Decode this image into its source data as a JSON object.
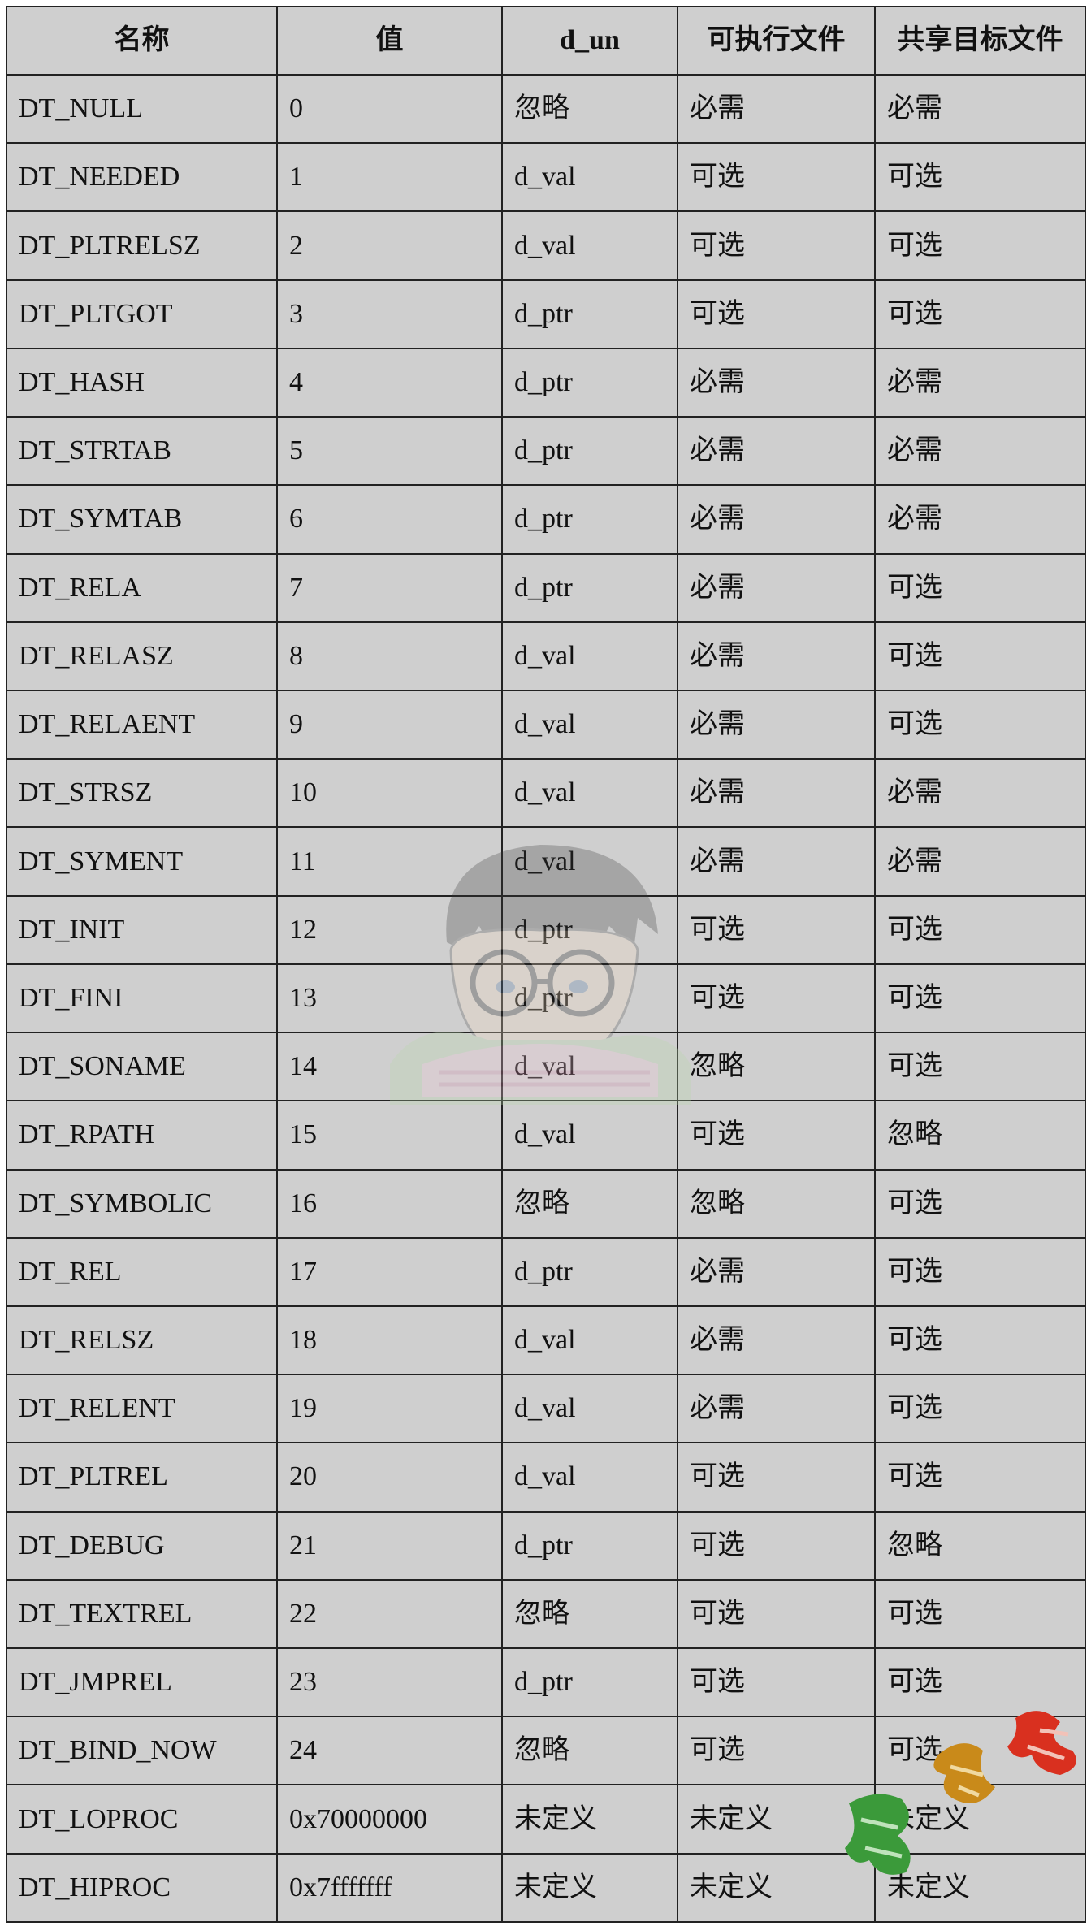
{
  "table": {
    "headers": [
      "名称",
      "值",
      "d_un",
      "可执行文件",
      "共享目标文件"
    ],
    "rows": [
      [
        "DT_NULL",
        "0",
        "忽略",
        "必需",
        "必需"
      ],
      [
        "DT_NEEDED",
        "1",
        "d_val",
        "可选",
        "可选"
      ],
      [
        "DT_PLTRELSZ",
        "2",
        "d_val",
        "可选",
        "可选"
      ],
      [
        "DT_PLTGOT",
        "3",
        "d_ptr",
        "可选",
        "可选"
      ],
      [
        "DT_HASH",
        "4",
        "d_ptr",
        "必需",
        "必需"
      ],
      [
        "DT_STRTAB",
        "5",
        "d_ptr",
        "必需",
        "必需"
      ],
      [
        "DT_SYMTAB",
        "6",
        "d_ptr",
        "必需",
        "必需"
      ],
      [
        "DT_RELA",
        "7",
        "d_ptr",
        "必需",
        "可选"
      ],
      [
        "DT_RELASZ",
        "8",
        "d_val",
        "必需",
        "可选"
      ],
      [
        "DT_RELAENT",
        "9",
        "d_val",
        "必需",
        "可选"
      ],
      [
        "DT_STRSZ",
        "10",
        "d_val",
        "必需",
        "必需"
      ],
      [
        "DT_SYMENT",
        "11",
        "d_val",
        "必需",
        "必需"
      ],
      [
        "DT_INIT",
        "12",
        "d_ptr",
        "可选",
        "可选"
      ],
      [
        "DT_FINI",
        "13",
        "d_ptr",
        "可选",
        "可选"
      ],
      [
        "DT_SONAME",
        "14",
        "d_val",
        "忽略",
        "可选"
      ],
      [
        "DT_RPATH",
        "15",
        "d_val",
        "可选",
        "忽略"
      ],
      [
        "DT_SYMBOLIC",
        "16",
        "忽略",
        "忽略",
        "可选"
      ],
      [
        "DT_REL",
        "17",
        "d_ptr",
        "必需",
        "可选"
      ],
      [
        "DT_RELSZ",
        "18",
        "d_val",
        "必需",
        "可选"
      ],
      [
        "DT_RELENT",
        "19",
        "d_val",
        "必需",
        "可选"
      ],
      [
        "DT_PLTREL",
        "20",
        "d_val",
        "可选",
        "可选"
      ],
      [
        "DT_DEBUG",
        "21",
        "d_ptr",
        "可选",
        "忽略"
      ],
      [
        "DT_TEXTREL",
        "22",
        "忽略",
        "可选",
        "可选"
      ],
      [
        "DT_JMPREL",
        "23",
        "d_ptr",
        "可选",
        "可选"
      ],
      [
        "DT_BIND_NOW",
        "24",
        "忽略",
        "可选",
        "可选"
      ],
      [
        "DT_LOPROC",
        "0x70000000",
        "未定义",
        "未定义",
        "未定义"
      ],
      [
        "DT_HIPROC",
        "0x7fffffff",
        "未定义",
        "未定义",
        "未定义"
      ]
    ]
  },
  "colors": {
    "cell_background": "#cfcfcf",
    "border": "#222222",
    "stamp_red": "#d9301f",
    "stamp_orange": "#c98a1a",
    "stamp_green": "#3b9a3a"
  },
  "watermarks": {
    "center_icon": "cartoon-boy-with-glasses-watermark-icon",
    "corner_icon": "calligraphy-stamp-watermark-icon"
  }
}
